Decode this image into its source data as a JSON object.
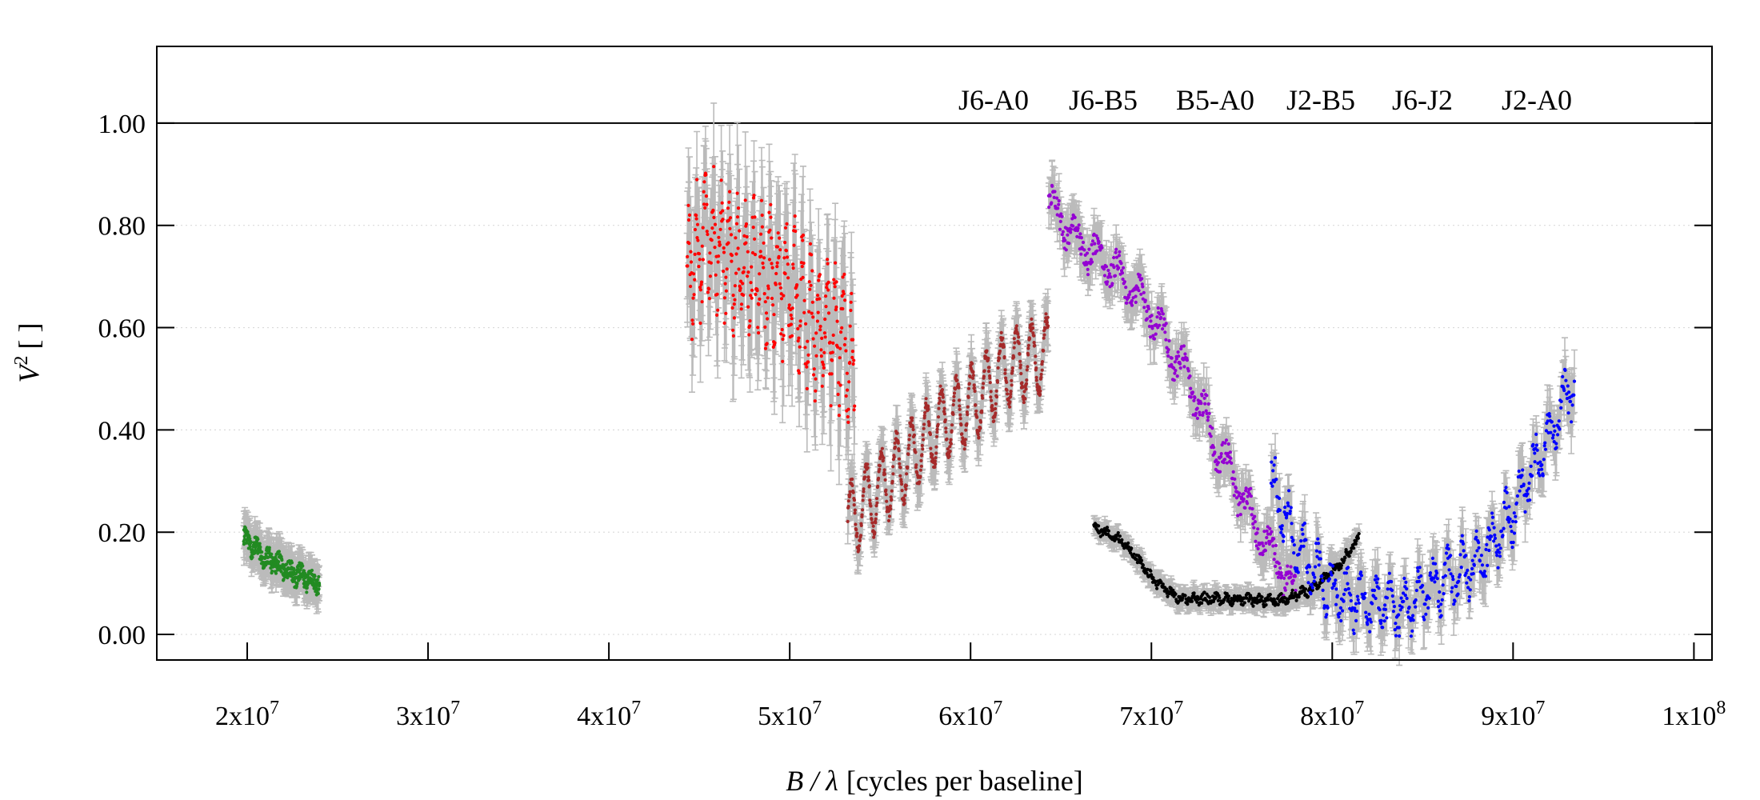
{
  "chart_data": {
    "type": "scatter",
    "title": "",
    "xlabel_symbol": "B / λ",
    "xlabel_units": "[cycles per baseline]",
    "ylabel_symbol": "V",
    "ylabel_sup": "2",
    "ylabel_units": "[ ]",
    "xlim": [
      15000000,
      101000000
    ],
    "ylim": [
      -0.05,
      1.15
    ],
    "x_ticks": [
      {
        "value": 20000000,
        "base": "2x10",
        "exp": "7"
      },
      {
        "value": 30000000,
        "base": "3x10",
        "exp": "7"
      },
      {
        "value": 40000000,
        "base": "4x10",
        "exp": "7"
      },
      {
        "value": 50000000,
        "base": "5x10",
        "exp": "7"
      },
      {
        "value": 60000000,
        "base": "6x10",
        "exp": "7"
      },
      {
        "value": 70000000,
        "base": "7x10",
        "exp": "7"
      },
      {
        "value": 80000000,
        "base": "8x10",
        "exp": "7"
      },
      {
        "value": 90000000,
        "base": "9x10",
        "exp": "7"
      },
      {
        "value": 100000000,
        "base": "1x10",
        "exp": "8"
      }
    ],
    "y_ticks": [
      {
        "value": 0.0,
        "label": "0.00"
      },
      {
        "value": 0.2,
        "label": "0.20"
      },
      {
        "value": 0.4,
        "label": "0.40"
      },
      {
        "value": 0.6,
        "label": "0.60"
      },
      {
        "value": 0.8,
        "label": "0.80"
      },
      {
        "value": 1.0,
        "label": "1.00"
      }
    ],
    "grid": "horizontal-dotted",
    "reference_line_y": 1.0,
    "errorbar_color": "#bbbbbb",
    "legend_position": "top-right",
    "series": [
      {
        "name": "J6-A0",
        "color": "#9400d3",
        "keypoints": [
          [
            64300000,
            0.85
          ],
          [
            66000000,
            0.77
          ],
          [
            68000000,
            0.71
          ],
          [
            70000000,
            0.63
          ],
          [
            72000000,
            0.5
          ],
          [
            74000000,
            0.34
          ],
          [
            76000000,
            0.2
          ],
          [
            78000000,
            0.08
          ]
        ],
        "oscillation": {
          "amplitude": 0.03,
          "period": 1200000
        },
        "noise": 0.025,
        "error": 0.04,
        "points": 450
      },
      {
        "name": "J6-B5",
        "color": "#0000ff",
        "keypoints": [
          [
            76600000,
            0.3
          ],
          [
            78000000,
            0.18
          ],
          [
            80000000,
            0.08
          ],
          [
            82000000,
            0.06
          ],
          [
            84000000,
            0.05
          ],
          [
            86000000,
            0.1
          ],
          [
            88000000,
            0.14
          ],
          [
            90000000,
            0.24
          ],
          [
            92000000,
            0.38
          ],
          [
            93400000,
            0.5
          ]
        ],
        "oscillation": {
          "amplitude": 0.04,
          "period": 800000
        },
        "noise": 0.03,
        "error": 0.045,
        "points": 520
      },
      {
        "name": "B5-A0",
        "color": "#228b22",
        "keypoints": [
          [
            19800000,
            0.19
          ],
          [
            21000000,
            0.15
          ],
          [
            22500000,
            0.12
          ],
          [
            24000000,
            0.1
          ]
        ],
        "oscillation": {
          "amplitude": 0.01,
          "period": 600000
        },
        "noise": 0.018,
        "error": 0.03,
        "points": 380
      },
      {
        "name": "J2-B5",
        "color": "#ff0000",
        "keypoints": [
          [
            44300000,
            0.7
          ],
          [
            45500000,
            0.78
          ],
          [
            47000000,
            0.72
          ],
          [
            48500000,
            0.7
          ],
          [
            50000000,
            0.68
          ],
          [
            51500000,
            0.6
          ],
          [
            53000000,
            0.58
          ],
          [
            53600000,
            0.5
          ]
        ],
        "oscillation": {
          "amplitude": 0.1,
          "period": 450000
        },
        "noise": 0.06,
        "error": 0.1,
        "points": 420
      },
      {
        "name": "J6-J2",
        "color": "#000000",
        "keypoints": [
          [
            66800000,
            0.21
          ],
          [
            68500000,
            0.18
          ],
          [
            70000000,
            0.11
          ],
          [
            71500000,
            0.07
          ],
          [
            74000000,
            0.07
          ],
          [
            77000000,
            0.065
          ],
          [
            79000000,
            0.09
          ],
          [
            80500000,
            0.14
          ],
          [
            81500000,
            0.19
          ]
        ],
        "oscillation": {
          "amplitude": 0.005,
          "period": 600000
        },
        "noise": 0.008,
        "error": 0.018,
        "points": 500
      },
      {
        "name": "J2-A0",
        "color": "#a52a2a",
        "keypoints": [
          [
            53200000,
            0.22
          ],
          [
            56000000,
            0.32
          ],
          [
            58000000,
            0.4
          ],
          [
            60000000,
            0.45
          ],
          [
            62000000,
            0.52
          ],
          [
            64300000,
            0.55
          ]
        ],
        "oscillation": {
          "amplitude": 0.07,
          "period": 830000
        },
        "noise": 0.012,
        "error": 0.04,
        "points": 600
      }
    ]
  }
}
